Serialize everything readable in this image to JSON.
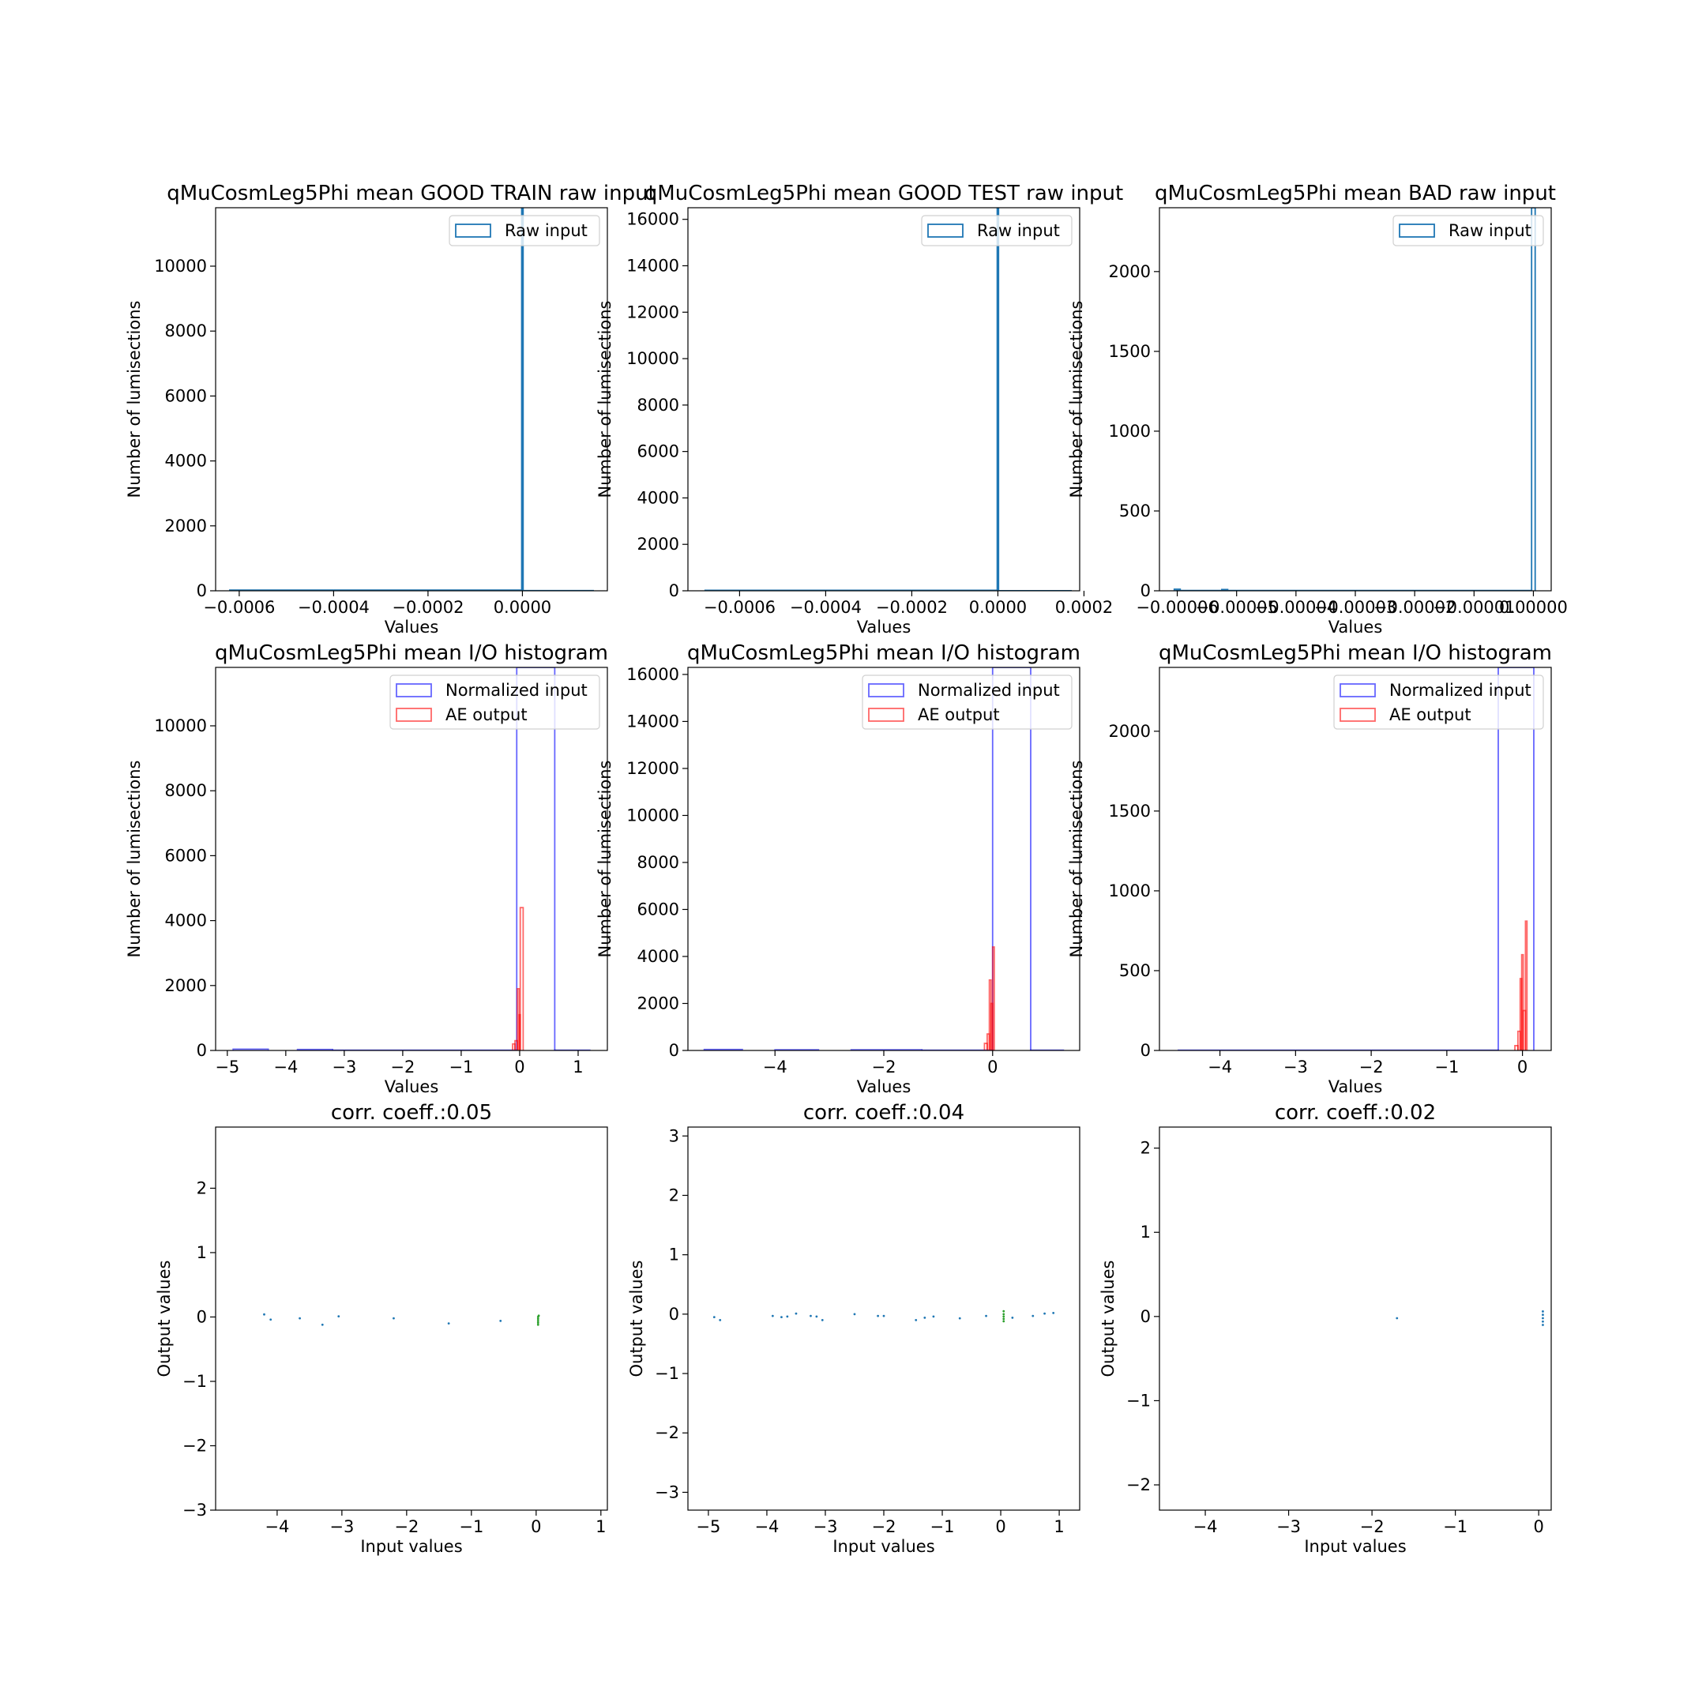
{
  "figure": {
    "background": "#ffffff"
  },
  "colors": {
    "raw": "#1f77b4",
    "norm": "#0000ff",
    "ae": "#ff0000",
    "scatter_a": "#1f77b4",
    "scatter_b": "#2ca02c"
  },
  "chart_data": [
    {
      "type": "bar",
      "subtype": "step-histogram",
      "title": "qMuCosmLeg5Phi mean GOOD TRAIN raw input",
      "xlabel": "Values",
      "ylabel": "Number of lumisections",
      "xlim": [
        -0.00065,
        0.00018
      ],
      "ylim": [
        0,
        11800
      ],
      "xticks": [
        -0.0006,
        -0.0004,
        -0.0002,
        0.0
      ],
      "xtick_labels": [
        "−0.0006",
        "−0.0004",
        "−0.0002",
        "0.0000"
      ],
      "yticks": [
        0,
        2000,
        4000,
        6000,
        8000,
        10000
      ],
      "ytick_labels": [
        "0",
        "2000",
        "4000",
        "6000",
        "8000",
        "10000"
      ],
      "legend": "top-right",
      "series": [
        {
          "name": "Raw input",
          "color": "#1f77b4",
          "bins": [
            [
              -0.00062,
              -1.5e-06,
              20
            ],
            [
              -1.5e-06,
              1.5e-06,
              11800
            ],
            [
              1.5e-06,
              0.00015,
              5
            ]
          ]
        }
      ]
    },
    {
      "type": "bar",
      "subtype": "step-histogram",
      "title": "qMuCosmLeg5Phi mean GOOD TEST raw input",
      "xlabel": "Values",
      "ylabel": "Number of lumisections",
      "xlim": [
        -0.00072,
        0.00019
      ],
      "ylim": [
        0,
        16500
      ],
      "xticks": [
        -0.0006,
        -0.0004,
        -0.0002,
        0.0,
        0.0002
      ],
      "xtick_labels": [
        "−0.0006",
        "−0.0004",
        "−0.0002",
        "0.0000",
        "0.0002"
      ],
      "yticks": [
        0,
        2000,
        4000,
        6000,
        8000,
        10000,
        12000,
        14000,
        16000
      ],
      "ytick_labels": [
        "0",
        "2000",
        "4000",
        "6000",
        "8000",
        "10000",
        "12000",
        "14000",
        "16000"
      ],
      "legend": "top-right",
      "series": [
        {
          "name": "Raw input",
          "color": "#1f77b4",
          "bins": [
            [
              -0.00068,
              -1.5e-06,
              20
            ],
            [
              -1.5e-06,
              1.5e-06,
              16500
            ],
            [
              1.5e-06,
              0.00017,
              5
            ]
          ]
        }
      ]
    },
    {
      "type": "bar",
      "subtype": "step-histogram",
      "title": "qMuCosmLeg5Phi mean BAD raw input",
      "xlabel": "Values",
      "ylabel": "Number of lumisections",
      "xlim": [
        -6.3e-05,
        3e-06
      ],
      "ylim": [
        0,
        2400
      ],
      "xticks": [
        -6e-05,
        -5e-05,
        -4e-05,
        -3e-05,
        -2e-05,
        -1e-05,
        0.0
      ],
      "xtick_labels": [
        "−0.00006",
        "−0.00005",
        "−0.00004",
        "−0.00003",
        "−0.00002",
        "−0.00001",
        "0.00000"
      ],
      "yticks": [
        0,
        500,
        1000,
        1500,
        2000
      ],
      "ytick_labels": [
        "0",
        "500",
        "1000",
        "1500",
        "2000"
      ],
      "legend": "top-right",
      "series": [
        {
          "name": "Raw input",
          "color": "#1f77b4",
          "bins": [
            [
              -6.05e-05,
              -5.95e-05,
              10
            ],
            [
              -5.25e-05,
              -5.15e-05,
              8
            ],
            [
              -6.02e-05,
              -3e-07,
              2
            ],
            [
              -3e-07,
              3e-07,
              2400
            ]
          ]
        }
      ]
    },
    {
      "type": "bar",
      "subtype": "step-histogram",
      "title": "qMuCosmLeg5Phi mean I/O histogram",
      "xlabel": "Values",
      "ylabel": "Number of lumisections",
      "xlim": [
        -5.2,
        1.5
      ],
      "ylim": [
        0,
        11800
      ],
      "xticks": [
        -5,
        -4,
        -3,
        -2,
        -1,
        0,
        1
      ],
      "xtick_labels": [
        "−5",
        "−4",
        "−3",
        "−2",
        "−1",
        "0",
        "1"
      ],
      "yticks": [
        0,
        2000,
        4000,
        6000,
        8000,
        10000
      ],
      "ytick_labels": [
        "0",
        "2000",
        "4000",
        "6000",
        "8000",
        "10000"
      ],
      "legend": "top-right",
      "series": [
        {
          "name": "Normalized input",
          "color": "#0000ff",
          "bins": [
            [
              -4.9,
              -4.3,
              40
            ],
            [
              -3.8,
              -3.2,
              30
            ],
            [
              -3.2,
              -0.05,
              10
            ],
            [
              -0.05,
              0.6,
              11800
            ],
            [
              0.6,
              1.2,
              10
            ]
          ]
        },
        {
          "name": "AE output",
          "color": "#ff0000",
          "bins": [
            [
              -0.12,
              -0.08,
              200
            ],
            [
              -0.08,
              -0.04,
              300
            ],
            [
              -0.04,
              -0.01,
              1900
            ],
            [
              -0.01,
              0.01,
              1100
            ],
            [
              0.01,
              0.06,
              4400
            ]
          ]
        }
      ]
    },
    {
      "type": "bar",
      "subtype": "step-histogram",
      "title": "qMuCosmLeg5Phi mean I/O histogram",
      "xlabel": "Values",
      "ylabel": "Number of lumisections",
      "xlim": [
        -5.6,
        1.6
      ],
      "ylim": [
        0,
        16300
      ],
      "xticks": [
        -4,
        -2,
        0
      ],
      "xtick_labels": [
        "−4",
        "−2",
        "0"
      ],
      "yticks": [
        0,
        2000,
        4000,
        6000,
        8000,
        10000,
        12000,
        14000,
        16000
      ],
      "ytick_labels": [
        "0",
        "2000",
        "4000",
        "6000",
        "8000",
        "10000",
        "12000",
        "14000",
        "16000"
      ],
      "legend": "top-right",
      "series": [
        {
          "name": "Normalized input",
          "color": "#0000ff",
          "bins": [
            [
              -5.3,
              -4.6,
              40
            ],
            [
              -4.0,
              -3.2,
              30
            ],
            [
              -2.6,
              -1.3,
              30
            ],
            [
              -1.3,
              0.0,
              10
            ],
            [
              0.0,
              0.7,
              16300
            ],
            [
              0.7,
              1.3,
              10
            ]
          ]
        },
        {
          "name": "AE output",
          "color": "#ff0000",
          "bins": [
            [
              -0.15,
              -0.1,
              300
            ],
            [
              -0.1,
              -0.06,
              700
            ],
            [
              -0.06,
              -0.03,
              3000
            ],
            [
              -0.03,
              0.0,
              2000
            ],
            [
              0.0,
              0.03,
              4400
            ]
          ]
        }
      ]
    },
    {
      "type": "bar",
      "subtype": "step-histogram",
      "title": "qMuCosmLeg5Phi mean I/O histogram",
      "xlabel": "Values",
      "ylabel": "Number of lumisections",
      "xlim": [
        -4.8,
        0.38
      ],
      "ylim": [
        0,
        2400
      ],
      "xticks": [
        -4,
        -3,
        -2,
        -1,
        0
      ],
      "xtick_labels": [
        "−4",
        "−3",
        "−2",
        "−1",
        "0"
      ],
      "yticks": [
        0,
        500,
        1000,
        1500,
        2000
      ],
      "ytick_labels": [
        "0",
        "500",
        "1000",
        "1500",
        "2000"
      ],
      "legend": "top-right",
      "series": [
        {
          "name": "Normalized input",
          "color": "#0000ff",
          "bins": [
            [
              -4.55,
              -0.32,
              2
            ],
            [
              -0.32,
              0.15,
              2400
            ]
          ]
        },
        {
          "name": "AE output",
          "color": "#ff0000",
          "bins": [
            [
              -0.1,
              -0.06,
              30
            ],
            [
              -0.06,
              -0.03,
              120
            ],
            [
              -0.03,
              -0.01,
              450
            ],
            [
              -0.01,
              0.01,
              600
            ],
            [
              0.01,
              0.04,
              250
            ],
            [
              0.04,
              0.06,
              810
            ]
          ]
        }
      ]
    },
    {
      "type": "scatter",
      "title": "corr. coeff.:0.05",
      "xlabel": "Input values",
      "ylabel": "Output values",
      "xlim": [
        -4.95,
        1.1
      ],
      "ylim": [
        -3.0,
        2.95
      ],
      "xticks": [
        -4,
        -3,
        -2,
        -1,
        0,
        1
      ],
      "xtick_labels": [
        "−4",
        "−3",
        "−2",
        "−1",
        "0",
        "1"
      ],
      "yticks": [
        -3,
        -2,
        -1,
        0,
        1,
        2
      ],
      "ytick_labels": [
        "−3",
        "−2",
        "−1",
        "0",
        "1",
        "2"
      ],
      "series": [
        {
          "color": "#1f77b4",
          "points": [
            [
              -4.2,
              0.04
            ],
            [
              -4.1,
              -0.04
            ],
            [
              -3.65,
              -0.02
            ],
            [
              -3.3,
              -0.12
            ],
            [
              -3.05,
              0.01
            ],
            [
              -2.2,
              -0.02
            ],
            [
              -1.35,
              -0.1
            ],
            [
              -0.55,
              -0.06
            ]
          ]
        },
        {
          "color": "#2ca02c",
          "points": [
            [
              0.03,
              0.0
            ],
            [
              0.03,
              -0.03
            ],
            [
              0.03,
              -0.06
            ],
            [
              0.03,
              -0.09
            ],
            [
              0.03,
              -0.12
            ],
            [
              0.04,
              0.02
            ]
          ]
        }
      ]
    },
    {
      "type": "scatter",
      "title": "corr. coeff.:0.04",
      "xlabel": "Input values",
      "ylabel": "Output values",
      "xlim": [
        -5.35,
        1.35
      ],
      "ylim": [
        -3.3,
        3.15
      ],
      "xticks": [
        -5,
        -4,
        -3,
        -2,
        -1,
        0,
        1
      ],
      "xtick_labels": [
        "−5",
        "−4",
        "−3",
        "−2",
        "−1",
        "0",
        "1"
      ],
      "yticks": [
        -3,
        -2,
        -1,
        0,
        1,
        2,
        3
      ],
      "ytick_labels": [
        "−3",
        "−2",
        "−1",
        "0",
        "1",
        "2",
        "3"
      ],
      "series": [
        {
          "color": "#1f77b4",
          "points": [
            [
              -4.9,
              -0.05
            ],
            [
              -4.8,
              -0.1
            ],
            [
              -3.9,
              -0.03
            ],
            [
              -3.75,
              -0.05
            ],
            [
              -3.65,
              -0.04
            ],
            [
              -3.5,
              0.01
            ],
            [
              -3.25,
              -0.03
            ],
            [
              -3.15,
              -0.04
            ],
            [
              -3.05,
              -0.1
            ],
            [
              -2.5,
              0.0
            ],
            [
              -2.1,
              -0.03
            ],
            [
              -2.0,
              -0.03
            ],
            [
              -1.45,
              -0.1
            ],
            [
              -1.3,
              -0.06
            ],
            [
              -1.15,
              -0.04
            ],
            [
              -0.7,
              -0.07
            ],
            [
              -0.25,
              -0.03
            ],
            [
              0.2,
              -0.06
            ],
            [
              0.55,
              -0.03
            ],
            [
              0.75,
              0.01
            ],
            [
              0.9,
              0.02
            ]
          ]
        },
        {
          "color": "#2ca02c",
          "points": [
            [
              0.05,
              0.0
            ],
            [
              0.05,
              -0.04
            ],
            [
              0.05,
              -0.08
            ],
            [
              0.05,
              -0.12
            ],
            [
              0.05,
              0.05
            ]
          ]
        }
      ]
    },
    {
      "type": "scatter",
      "title": "corr. coeff.:0.02",
      "xlabel": "Input values",
      "ylabel": "Output values",
      "xlim": [
        -4.55,
        0.15
      ],
      "ylim": [
        -2.3,
        2.25
      ],
      "xticks": [
        -4,
        -3,
        -2,
        -1,
        0
      ],
      "xtick_labels": [
        "−4",
        "−3",
        "−2",
        "−1",
        "0"
      ],
      "yticks": [
        -2,
        -1,
        0,
        1,
        2
      ],
      "ytick_labels": [
        "−2",
        "−1",
        "0",
        "1",
        "2"
      ],
      "series": [
        {
          "color": "#1f77b4",
          "points": [
            [
              -1.7,
              -0.02
            ],
            [
              0.05,
              0.06
            ],
            [
              0.05,
              0.02
            ],
            [
              0.05,
              -0.02
            ],
            [
              0.05,
              -0.06
            ],
            [
              0.05,
              -0.1
            ]
          ]
        }
      ]
    }
  ]
}
